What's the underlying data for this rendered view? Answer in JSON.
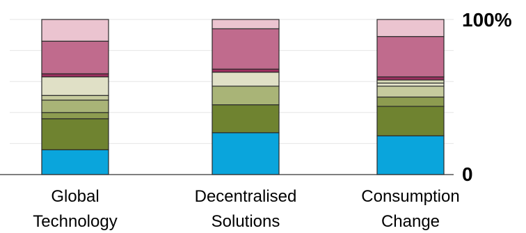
{
  "chart_data": {
    "type": "bar",
    "stacked": true,
    "categories": [
      [
        "Global",
        "Technology"
      ],
      [
        "Decentralised",
        "Solutions"
      ],
      [
        "Consumption",
        "Change"
      ]
    ],
    "y_ticks": [
      "0",
      "100%"
    ],
    "ylim": [
      0,
      100
    ],
    "grid": true,
    "legend": "none",
    "series": [
      {
        "color": "#0aa5dc",
        "values": [
          16,
          27,
          25
        ]
      },
      {
        "color": "#6f8330",
        "values": [
          20,
          18,
          19
        ]
      },
      {
        "color": "#8d9c50",
        "values": [
          4,
          0,
          6
        ]
      },
      {
        "color": "#a9b477",
        "values": [
          8,
          12,
          0
        ]
      },
      {
        "color": "#c6cb9d",
        "values": [
          3,
          0,
          7
        ]
      },
      {
        "color": "#e0e0c6",
        "values": [
          12,
          9,
          2
        ]
      },
      {
        "color": "#d7dab7",
        "values": [
          0,
          0,
          2
        ]
      },
      {
        "color": "#9a2f5e",
        "values": [
          2,
          2,
          2
        ]
      },
      {
        "color": "#c06b8d",
        "values": [
          21,
          26,
          26
        ]
      },
      {
        "color": "#ebc4d0",
        "values": [
          14,
          6,
          11
        ]
      }
    ]
  }
}
